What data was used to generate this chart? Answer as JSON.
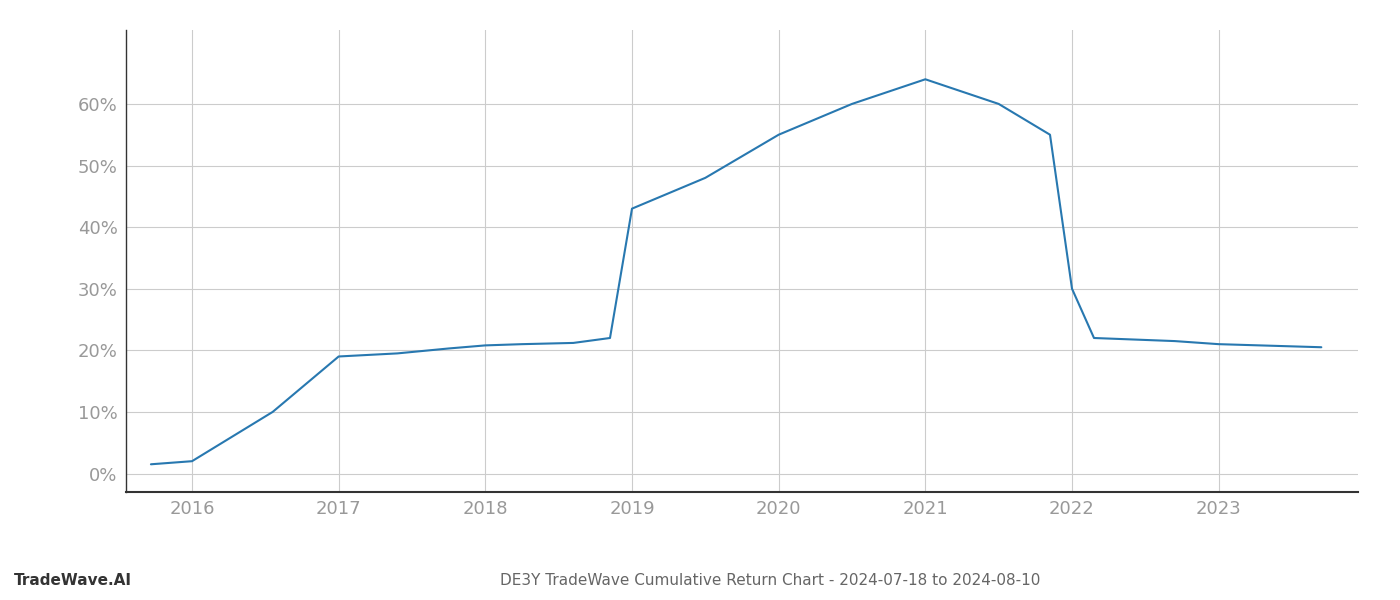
{
  "x_values": [
    2015.72,
    2016.0,
    2016.55,
    2017.0,
    2017.4,
    2017.75,
    2018.0,
    2018.25,
    2018.6,
    2018.85,
    2019.0,
    2019.5,
    2020.0,
    2020.5,
    2021.0,
    2021.5,
    2021.85,
    2022.0,
    2022.15,
    2022.7,
    2023.0,
    2023.7
  ],
  "y_values": [
    1.5,
    2.0,
    10.0,
    19.0,
    19.5,
    20.3,
    20.8,
    21.0,
    21.2,
    22.0,
    43.0,
    48.0,
    55.0,
    60.0,
    64.0,
    60.0,
    55.0,
    30.0,
    22.0,
    21.5,
    21.0,
    20.5
  ],
  "x_ticks": [
    2016,
    2017,
    2018,
    2019,
    2020,
    2021,
    2022,
    2023
  ],
  "y_ticks": [
    0,
    10,
    20,
    30,
    40,
    50,
    60
  ],
  "ylim": [
    -3,
    72
  ],
  "xlim": [
    2015.55,
    2023.95
  ],
  "line_color": "#2878b0",
  "line_width": 1.5,
  "title": "DE3Y TradeWave Cumulative Return Chart - 2024-07-18 to 2024-08-10",
  "footer_left": "TradeWave.AI",
  "background_color": "#ffffff",
  "grid_color": "#cccccc",
  "tick_label_color": "#999999",
  "title_color": "#666666",
  "footer_color": "#333333"
}
